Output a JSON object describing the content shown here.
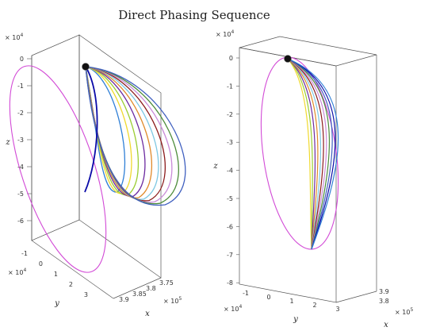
{
  "chart_data": {
    "title": "Direct Phasing Sequence",
    "type": "line",
    "plots": [
      {
        "view": "oblique",
        "axes": {
          "z": {
            "label": "z",
            "exponent": "× 10^4",
            "ticks": [
              "0",
              "-1",
              "-2",
              "-3",
              "-4",
              "-5",
              "-6"
            ],
            "range": [
              -6.5,
              0.5
            ]
          },
          "y": {
            "label": "y",
            "exponent": "× 10^4",
            "ticks": [
              "-1",
              "0",
              "1",
              "2",
              "3"
            ]
          },
          "x": {
            "label": "x",
            "exponent": "× 10^5",
            "ticks": [
              "3.9",
              "3.85",
              "3.8",
              "3.75"
            ]
          }
        },
        "reference_orbit_color": "#d24ad6",
        "series_count": 11
      },
      {
        "view": "side",
        "axes": {
          "z": {
            "label": "z",
            "exponent": "× 10^4",
            "ticks": [
              "0",
              "-1",
              "-2",
              "-3",
              "-4",
              "-5",
              "-6",
              "-7",
              "-8"
            ],
            "range": [
              -8,
              0.3
            ]
          },
          "y": {
            "label": "y",
            "exponent": "× 10^4",
            "ticks": [
              "-1",
              "0",
              "1",
              "2",
              "3"
            ]
          },
          "x": {
            "label": "x",
            "exponent": "× 10^5",
            "ticks": [
              "3.8",
              "3.9"
            ]
          }
        },
        "reference_orbit_color": "#d24ad6",
        "series_count": 11
      }
    ],
    "series_colors": [
      "#0a0aa8",
      "#2f7fd6",
      "#f0d92e",
      "#9acd32",
      "#6c2aa0",
      "#e08a2a",
      "#7ec8e3",
      "#8b1a1a",
      "#c98bd8",
      "#4d8c3a",
      "#3f5fbf"
    ]
  }
}
